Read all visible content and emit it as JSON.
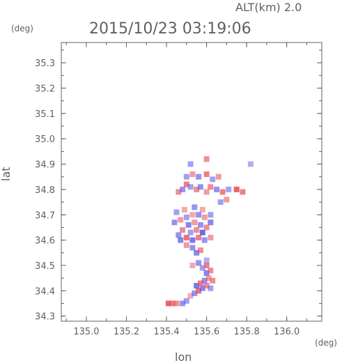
{
  "header": {
    "alt_label": "ALT(km)  2.0",
    "timestamp": "2015/10/23 03:19:06"
  },
  "chart_data": {
    "type": "heatmap",
    "title": "2015/10/23 03:19:06",
    "subtitle": "ALT(km)  2.0",
    "xlabel": "lon",
    "ylabel": "lat",
    "x_unit": "(deg)",
    "y_unit": "(deg)",
    "xlim": [
      134.875,
      136.175
    ],
    "ylim": [
      34.28,
      35.38
    ],
    "x_ticks": [
      "135.0",
      "135.2",
      "135.4",
      "135.6",
      "135.8",
      "136.0"
    ],
    "y_ticks": [
      "34.3",
      "34.4",
      "34.5",
      "34.6",
      "34.7",
      "34.8",
      "34.9",
      "35.0",
      "35.1",
      "35.2",
      "35.3"
    ],
    "grid": false,
    "colors": {
      "positive": "#e8505a",
      "negative": "#5a5ae8",
      "axis": "#606060"
    },
    "cells": [
      [
        135.41,
        34.35,
        0.8
      ],
      [
        135.43,
        34.35,
        0.6
      ],
      [
        135.45,
        34.35,
        0.5
      ],
      [
        135.48,
        34.35,
        -0.5
      ],
      [
        135.5,
        34.36,
        -0.4
      ],
      [
        135.52,
        34.38,
        0.3
      ],
      [
        135.54,
        34.39,
        -0.5
      ],
      [
        135.56,
        34.4,
        0.7
      ],
      [
        135.58,
        34.41,
        -0.6
      ],
      [
        135.6,
        34.42,
        0.5
      ],
      [
        135.62,
        34.41,
        -0.4
      ],
      [
        135.55,
        34.42,
        -0.7
      ],
      [
        135.57,
        34.43,
        0.6
      ],
      [
        135.59,
        34.44,
        -0.5
      ],
      [
        135.61,
        34.45,
        0.4
      ],
      [
        135.63,
        34.44,
        0.5
      ],
      [
        135.6,
        34.47,
        -0.6
      ],
      [
        135.62,
        34.48,
        0.5
      ],
      [
        135.58,
        34.49,
        -0.4
      ],
      [
        135.6,
        34.5,
        0.6
      ],
      [
        135.56,
        34.51,
        -0.5
      ],
      [
        135.53,
        34.5,
        0.3
      ],
      [
        135.6,
        34.52,
        -0.3
      ],
      [
        135.55,
        34.55,
        -0.6
      ],
      [
        135.57,
        34.56,
        0.5
      ],
      [
        135.53,
        34.57,
        -0.5
      ],
      [
        135.5,
        34.58,
        0.4
      ],
      [
        135.47,
        34.6,
        -0.6
      ],
      [
        135.5,
        34.61,
        0.7
      ],
      [
        135.53,
        34.6,
        -0.7
      ],
      [
        135.56,
        34.61,
        0.6
      ],
      [
        135.59,
        34.6,
        -0.5
      ],
      [
        135.62,
        34.61,
        0.4
      ],
      [
        135.58,
        34.63,
        -0.8
      ],
      [
        135.55,
        34.64,
        0.5
      ],
      [
        135.52,
        34.63,
        -0.4
      ],
      [
        135.48,
        34.64,
        0.5
      ],
      [
        135.46,
        34.62,
        -0.5
      ],
      [
        135.51,
        34.66,
        -0.6
      ],
      [
        135.54,
        34.67,
        0.4
      ],
      [
        135.57,
        34.66,
        -0.5
      ],
      [
        135.6,
        34.65,
        0.5
      ],
      [
        135.62,
        34.67,
        -0.6
      ],
      [
        135.59,
        34.69,
        0.4
      ],
      [
        135.56,
        34.7,
        -0.5
      ],
      [
        135.53,
        34.7,
        0.3
      ],
      [
        135.5,
        34.69,
        -0.4
      ],
      [
        135.47,
        34.68,
        0.4
      ],
      [
        135.44,
        34.67,
        -0.5
      ],
      [
        135.45,
        34.71,
        -0.4
      ],
      [
        135.49,
        34.72,
        0.3
      ],
      [
        135.54,
        34.73,
        -0.5
      ],
      [
        135.58,
        34.72,
        0.3
      ],
      [
        135.62,
        34.7,
        -0.4
      ],
      [
        135.46,
        34.79,
        0.5
      ],
      [
        135.48,
        34.8,
        -0.5
      ],
      [
        135.5,
        34.82,
        0.6
      ],
      [
        135.52,
        34.81,
        -0.4
      ],
      [
        135.55,
        34.8,
        0.5
      ],
      [
        135.57,
        34.81,
        -0.5
      ],
      [
        135.6,
        34.79,
        0.4
      ],
      [
        135.62,
        34.81,
        0.5
      ],
      [
        135.65,
        34.8,
        -0.5
      ],
      [
        135.68,
        34.79,
        0.6
      ],
      [
        135.71,
        34.8,
        -0.4
      ],
      [
        135.75,
        34.8,
        0.8
      ],
      [
        135.78,
        34.79,
        0.6
      ],
      [
        135.5,
        34.85,
        -0.4
      ],
      [
        135.53,
        34.86,
        0.4
      ],
      [
        135.56,
        34.85,
        -0.5
      ],
      [
        135.6,
        34.86,
        0.6
      ],
      [
        135.63,
        34.84,
        -0.4
      ],
      [
        135.66,
        34.85,
        0.4
      ],
      [
        135.52,
        34.9,
        -0.4
      ],
      [
        135.6,
        34.92,
        0.5
      ],
      [
        135.82,
        34.9,
        -0.3
      ],
      [
        135.67,
        34.75,
        -0.4
      ],
      [
        135.7,
        34.76,
        0.4
      ]
    ]
  }
}
